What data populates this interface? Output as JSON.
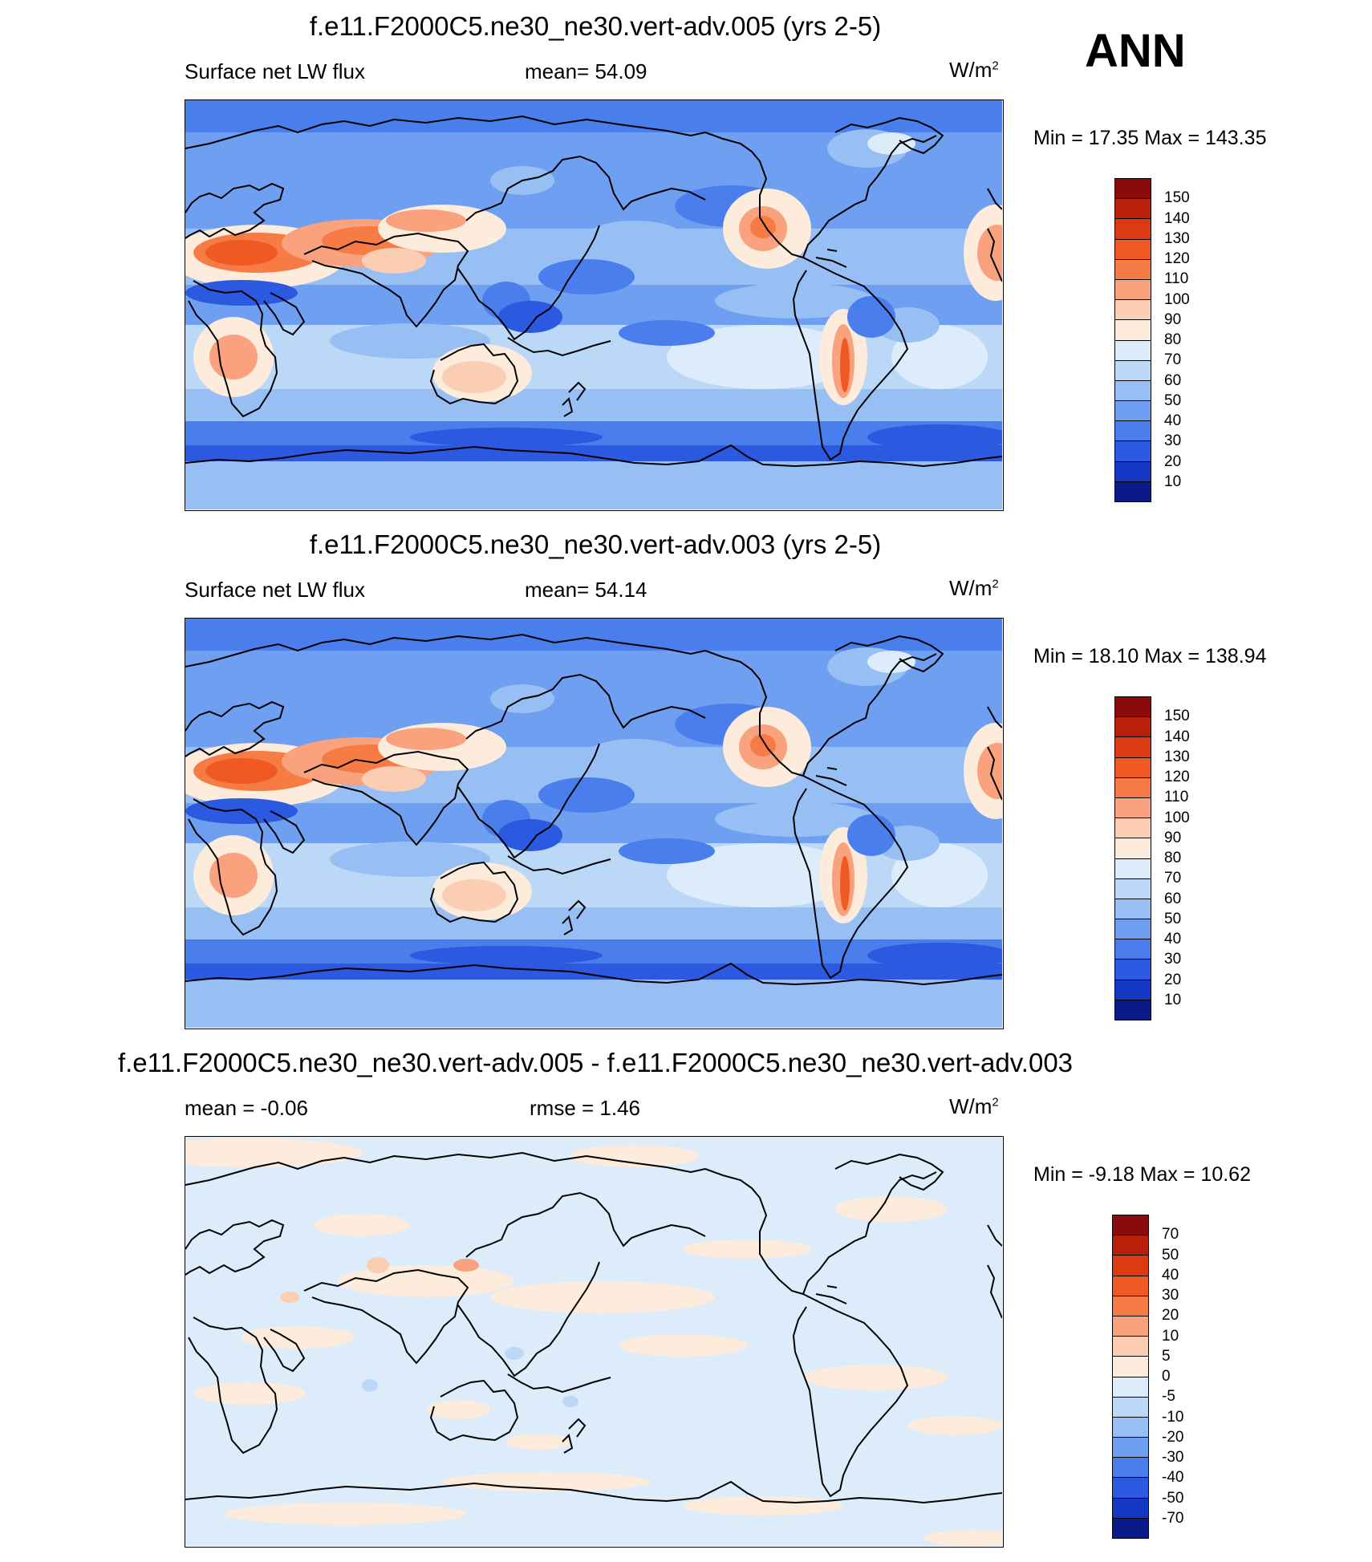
{
  "season": "ANN",
  "panels": [
    {
      "title": "f.e11.F2000C5.ne30_ne30.vert-adv.005 (yrs 2-5)",
      "left_label": "Surface net LW flux",
      "center_label": "mean=  54.09",
      "units": "W/m",
      "units_sup": "2",
      "minmax": "Min =  17.35 Max = 143.35",
      "kind": "abs"
    },
    {
      "title": "f.e11.F2000C5.ne30_ne30.vert-adv.003 (yrs 2-5)",
      "left_label": "Surface net LW flux",
      "center_label": "mean=  54.14",
      "units": "W/m",
      "units_sup": "2",
      "minmax": "Min =  18.10 Max = 138.94",
      "kind": "abs"
    },
    {
      "title": "f.e11.F2000C5.ne30_ne30.vert-adv.005 - f.e11.F2000C5.ne30_ne30.vert-adv.003",
      "left_label": "mean =  -0.06",
      "center_label": "rmse =   1.46",
      "units": "W/m",
      "units_sup": "2",
      "minmax": "Min =  -9.18 Max =  10.62",
      "kind": "diff"
    }
  ],
  "colorbars": {
    "abs": {
      "labels": [
        "150",
        "140",
        "130",
        "120",
        "110",
        "100",
        "90",
        "80",
        "70",
        "60",
        "50",
        "40",
        "30",
        "20",
        "10"
      ],
      "colors": [
        "#8b0a0a",
        "#b8200a",
        "#dd3a12",
        "#f05a22",
        "#f77b45",
        "#f9a27d",
        "#fbcdb3",
        "#fdebdc",
        "#dcecfb",
        "#bcd8f7",
        "#97bff4",
        "#6e9ff0",
        "#4a7eec",
        "#2b59df",
        "#1538c4",
        "#0a1a88"
      ]
    },
    "diff": {
      "labels": [
        "70",
        "50",
        "40",
        "30",
        "20",
        "10",
        "5",
        "0",
        "-5",
        "-10",
        "-20",
        "-30",
        "-40",
        "-50",
        "-70"
      ],
      "colors": [
        "#8b0a0a",
        "#b8200a",
        "#dd3a12",
        "#f05a22",
        "#f77b45",
        "#f9a27d",
        "#fbcdb3",
        "#fdebdc",
        "#dcecfb",
        "#bcd8f7",
        "#97bff4",
        "#6e9ff0",
        "#4a7eec",
        "#2b59df",
        "#1538c4",
        "#0a1a88"
      ]
    }
  }
}
